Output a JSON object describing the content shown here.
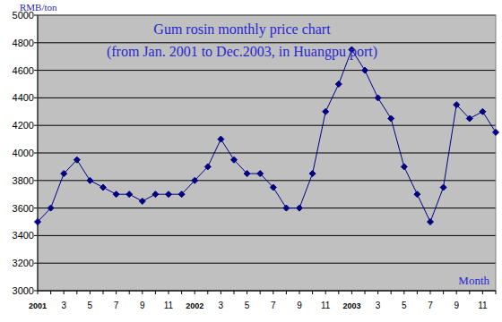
{
  "chart_data": {
    "type": "line",
    "title": "Gum rosin monthly price chart",
    "subtitle": "(from Jan. 2001 to Dec.2003, in Huangpu port)",
    "y_label": "RMB/ton",
    "x_label": "Month",
    "categories": [
      "2001",
      null,
      "3",
      null,
      "5",
      null,
      "7",
      null,
      "9",
      null,
      "11",
      null,
      "2002",
      null,
      "3",
      null,
      "5",
      null,
      "7",
      null,
      "9",
      null,
      "11",
      null,
      "2003",
      null,
      "3",
      null,
      "5",
      null,
      "7",
      null,
      "9",
      null,
      "11",
      null
    ],
    "values": [
      3500,
      3600,
      3850,
      3950,
      3800,
      3750,
      3700,
      3700,
      3650,
      3700,
      3700,
      3700,
      3800,
      3900,
      4100,
      3950,
      3850,
      3850,
      3750,
      3600,
      3600,
      3850,
      4300,
      4500,
      4750,
      4600,
      4400,
      4250,
      3900,
      3700,
      3500,
      3750,
      4350,
      4250,
      4300,
      4150
    ],
    "color": "#000080",
    "marker": "diamond",
    "ylim": [
      3000,
      5000
    ],
    "yticks": [
      3000,
      3200,
      3400,
      3600,
      3800,
      4000,
      4200,
      4400,
      4600,
      4800,
      5000
    ],
    "grid": true
  }
}
